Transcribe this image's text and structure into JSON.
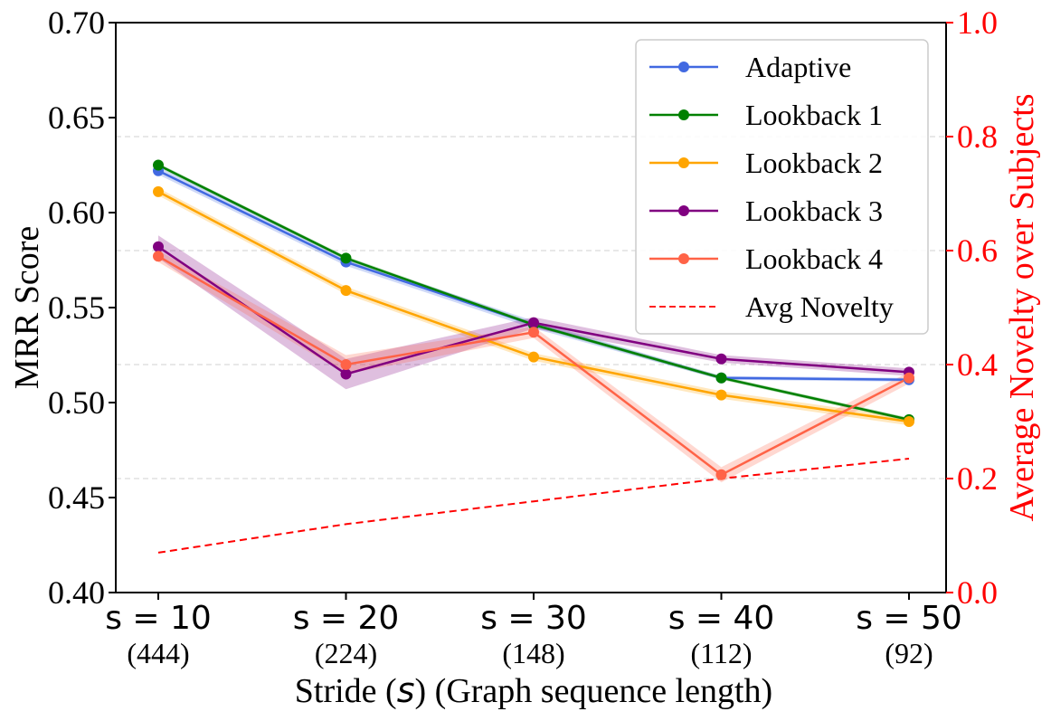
{
  "chart_data": {
    "type": "line",
    "title": "",
    "xlabel": "Stride (s) (Graph sequence length)",
    "xlabel_parts": {
      "prefix": "Stride (",
      "symbol": "s",
      "suffix": ") (Graph sequence length)"
    },
    "ylabel": "MRR Score",
    "y2label": "Average Novelty over Subjects",
    "categories": [
      "s = 10",
      "s = 20",
      "s = 30",
      "s = 40",
      "s = 50"
    ],
    "category_sublabels": [
      "(444)",
      "(224)",
      "(148)",
      "(112)",
      "(92)"
    ],
    "ylim": [
      0.4,
      0.7
    ],
    "y2lim": [
      0.0,
      1.0
    ],
    "yticks": [
      "0.40",
      "0.45",
      "0.50",
      "0.55",
      "0.60",
      "0.65",
      "0.70"
    ],
    "y2ticks": [
      "0.0",
      "0.2",
      "0.4",
      "0.6",
      "0.8",
      "1.0"
    ],
    "grid": "horizontal dashed at right-axis ticks",
    "legend_position": "top-right",
    "series": [
      {
        "name": "Adaptive",
        "color": "#4169e1",
        "values": [
          0.622,
          0.574,
          0.541,
          0.513,
          0.512
        ],
        "band": [
          0.002,
          0.002,
          0.002,
          0.001,
          0.001
        ]
      },
      {
        "name": "Lookback 1",
        "color": "#008000",
        "values": [
          0.625,
          0.576,
          0.541,
          0.513,
          0.491
        ],
        "band": [
          0.001,
          0.001,
          0.001,
          0.001,
          0.001
        ]
      },
      {
        "name": "Lookback 2",
        "color": "#ffa500",
        "values": [
          0.611,
          0.559,
          0.524,
          0.504,
          0.49
        ],
        "band": [
          0.002,
          0.002,
          0.002,
          0.002,
          0.002
        ]
      },
      {
        "name": "Lookback 3",
        "color": "#800080",
        "values": [
          0.582,
          0.515,
          0.542,
          0.523,
          0.516
        ],
        "band": [
          0.006,
          0.008,
          0.003,
          0.002,
          0.002
        ]
      },
      {
        "name": "Lookback 4",
        "color": "#ff6347",
        "values": [
          0.577,
          0.52,
          0.537,
          0.462,
          0.513
        ],
        "band": [
          0.003,
          0.005,
          0.003,
          0.004,
          0.003
        ]
      }
    ],
    "right_axis_series": {
      "name": "Avg Novelty",
      "color": "#ff0000",
      "style": "dashed",
      "values": [
        0.07,
        0.12,
        0.16,
        0.2,
        0.235
      ]
    }
  }
}
